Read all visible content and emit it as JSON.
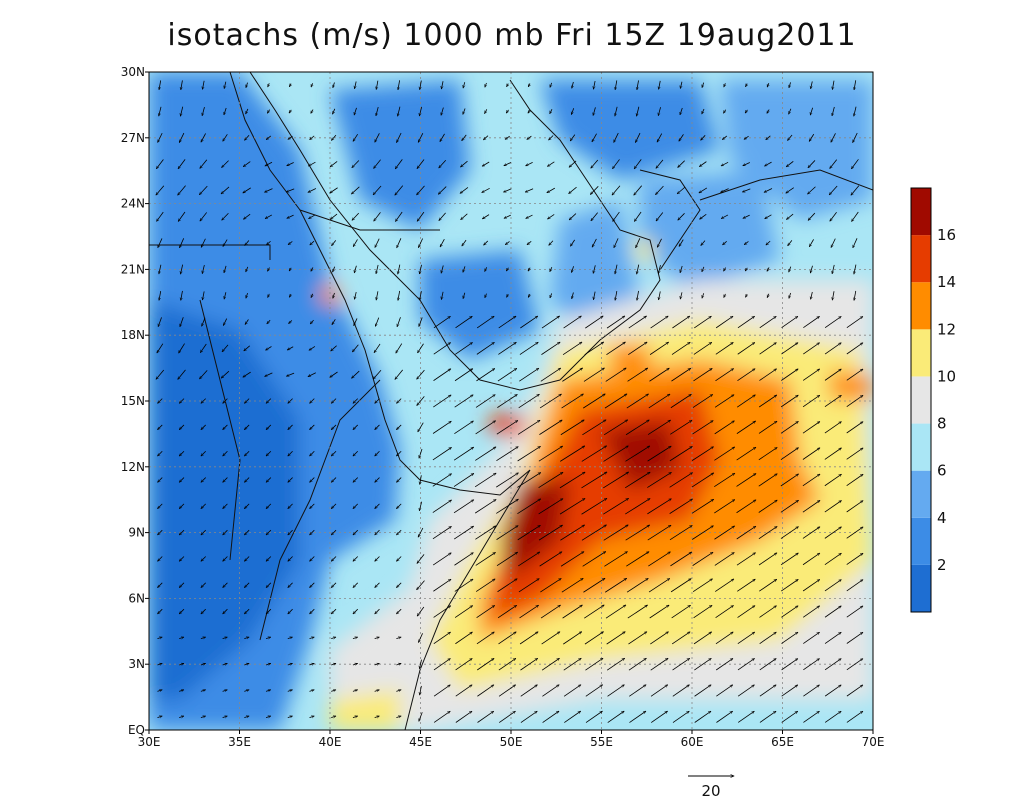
{
  "title": "isotachs (m/s) 1000 mb Fri 15Z 19aug2011",
  "map": {
    "lon_range": [
      30,
      70
    ],
    "lat_range": [
      0,
      30
    ],
    "lon_ticks": [
      {
        "value": 30,
        "label": "30E"
      },
      {
        "value": 35,
        "label": "35E"
      },
      {
        "value": 40,
        "label": "40E"
      },
      {
        "value": 45,
        "label": "45E"
      },
      {
        "value": 50,
        "label": "50E"
      },
      {
        "value": 55,
        "label": "55E"
      },
      {
        "value": 60,
        "label": "60E"
      },
      {
        "value": 65,
        "label": "65E"
      },
      {
        "value": 70,
        "label": "70E"
      }
    ],
    "lat_ticks": [
      {
        "value": 0,
        "label": "EQ"
      },
      {
        "value": 3,
        "label": "3N"
      },
      {
        "value": 6,
        "label": "6N"
      },
      {
        "value": 9,
        "label": "9N"
      },
      {
        "value": 12,
        "label": "12N"
      },
      {
        "value": 15,
        "label": "15N"
      },
      {
        "value": 18,
        "label": "18N"
      },
      {
        "value": 21,
        "label": "21N"
      },
      {
        "value": 24,
        "label": "24N"
      },
      {
        "value": 27,
        "label": "27N"
      },
      {
        "value": 30,
        "label": "30N"
      }
    ]
  },
  "colorbar": {
    "levels": [
      2,
      4,
      6,
      8,
      10,
      12,
      14,
      16
    ],
    "colors": [
      "#1e6ed2",
      "#3c8ce6",
      "#64aaf0",
      "#aae6f5",
      "#e6e6e6",
      "#faeb78",
      "#ff8c00",
      "#e63c00",
      "#a00a00"
    ]
  },
  "reference_vector": {
    "label": "20"
  },
  "chart_data": {
    "type": "heatmap",
    "variable": "isotachs (m/s)",
    "level": "1000 mb",
    "x_range": [
      30,
      70
    ],
    "y_range": [
      0,
      30
    ],
    "max_regions": [
      {
        "lon": 57.5,
        "lat": 12.5,
        "value": 17
      },
      {
        "lon": 52,
        "lat": 10,
        "value": 16.5
      },
      {
        "lon": 50,
        "lat": 7,
        "value": 16
      },
      {
        "lon": 56.5,
        "lat": 16.5,
        "value": 15
      },
      {
        "lon": 49.5,
        "lat": 13.7,
        "value": 14
      },
      {
        "lon": 40,
        "lat": 20,
        "value": 12
      }
    ]
  }
}
